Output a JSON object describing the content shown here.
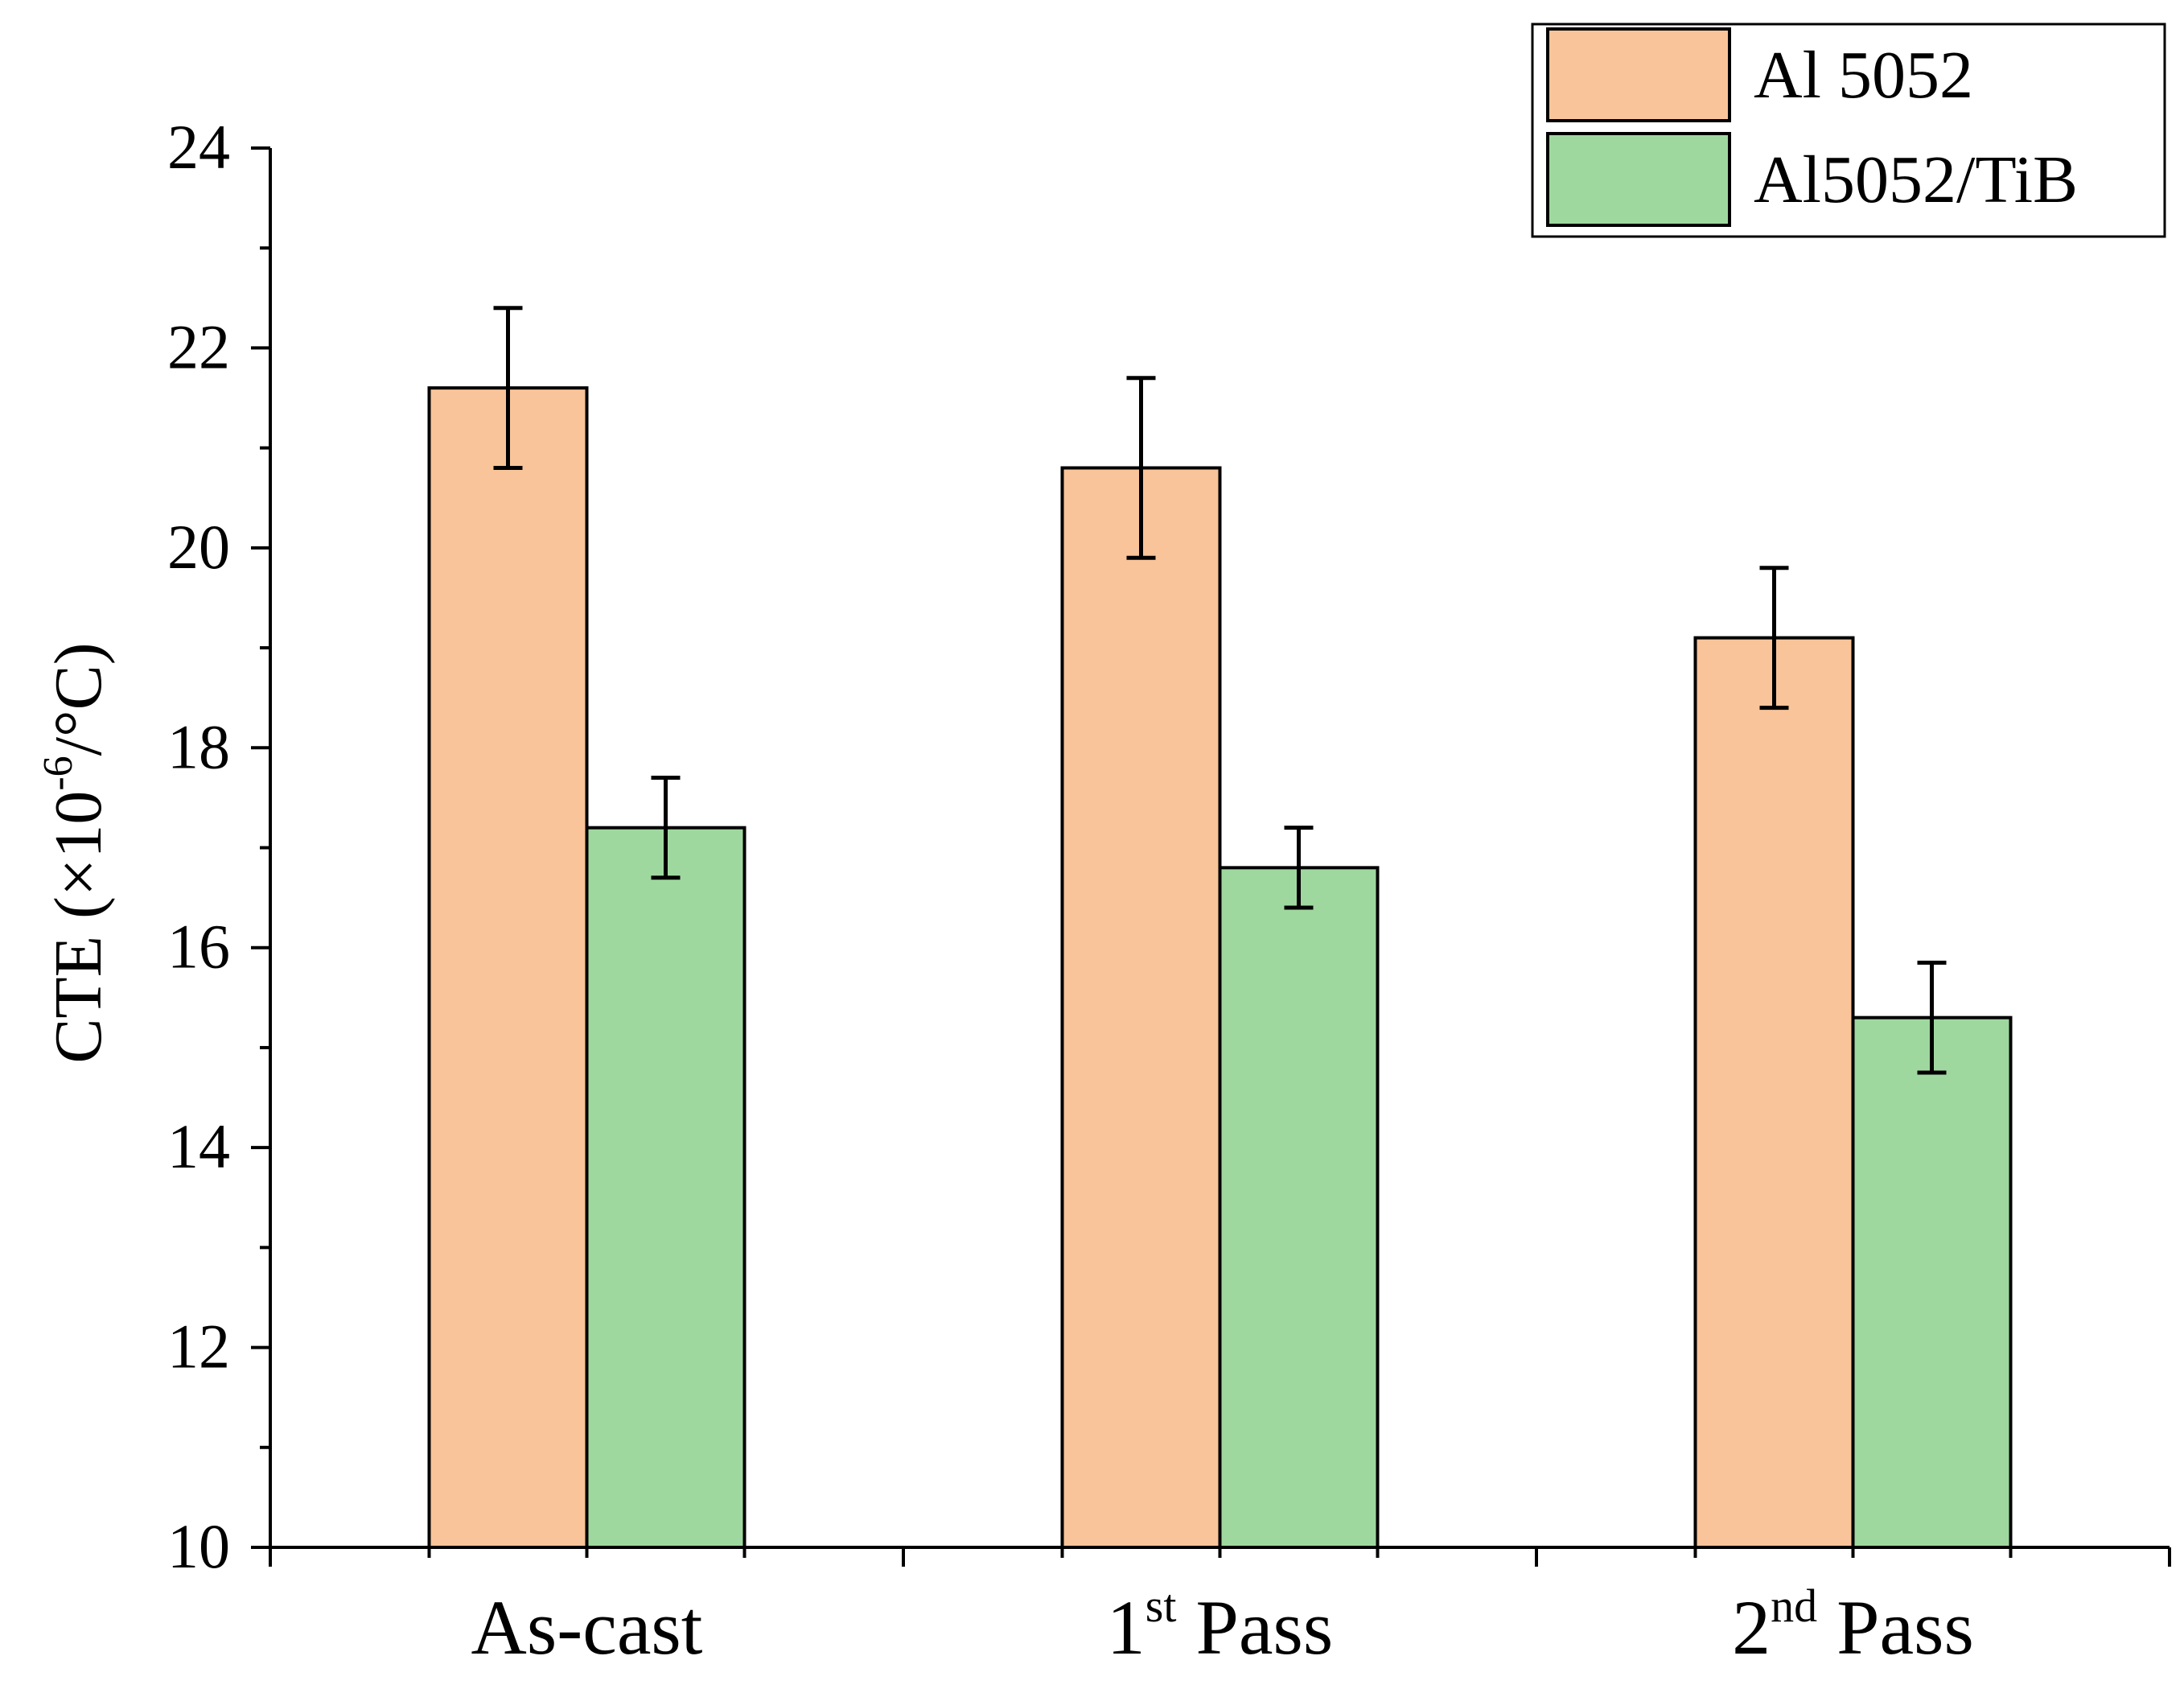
{
  "chart_data": {
    "type": "bar",
    "title": "",
    "xlabel": "",
    "ylabel": {
      "prefix": "CTE (×10",
      "sup": "-6",
      "suffix": "/°C)"
    },
    "ylim": [
      10,
      24
    ],
    "yticks": [
      10,
      12,
      14,
      16,
      18,
      20,
      22,
      24
    ],
    "categories": [
      {
        "base": "As-cast",
        "sup": "",
        "rest": ""
      },
      {
        "base": "1",
        "sup": "st",
        "rest": " Pass"
      },
      {
        "base": "2",
        "sup": "nd",
        "rest": " Pass"
      }
    ],
    "series": [
      {
        "name": "Al 5052",
        "color": "#f9c499",
        "values": [
          21.6,
          20.8,
          19.1
        ],
        "errors": [
          0.8,
          0.9,
          0.7
        ]
      },
      {
        "name": "Al5052/TiB",
        "color": "#9fd89f",
        "values": [
          17.2,
          16.8,
          15.3
        ],
        "errors": [
          0.5,
          0.4,
          0.55
        ]
      }
    ],
    "legend_position": "top-right",
    "grid": false
  }
}
